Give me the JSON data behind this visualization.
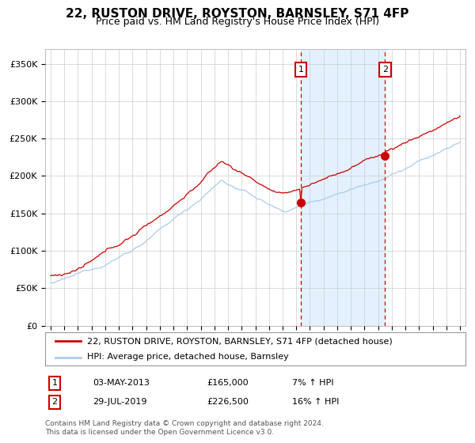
{
  "title": "22, RUSTON DRIVE, ROYSTON, BARNSLEY, S71 4FP",
  "subtitle": "Price paid vs. HM Land Registry's House Price Index (HPI)",
  "ylim": [
    0,
    370000
  ],
  "yticks": [
    0,
    50000,
    100000,
    150000,
    200000,
    250000,
    300000,
    350000
  ],
  "ytick_labels": [
    "£0",
    "£50K",
    "£100K",
    "£150K",
    "£200K",
    "£250K",
    "£300K",
    "£350K"
  ],
  "hpi_color": "#aaccee",
  "price_color": "#cc0000",
  "vline_color": "#dd0000",
  "shade_color": "#ddeeff",
  "dot_color": "#cc0000",
  "grid_color": "#cccccc",
  "legend_label_price": "22, RUSTON DRIVE, ROYSTON, BARNSLEY, S71 4FP (detached house)",
  "legend_label_hpi": "HPI: Average price, detached house, Barnsley",
  "transaction1_date": "03-MAY-2013",
  "transaction1_price": 165000,
  "transaction1_pct": "7%",
  "transaction2_date": "29-JUL-2019",
  "transaction2_price": 226500,
  "transaction2_pct": "16%",
  "footnote1": "Contains HM Land Registry data © Crown copyright and database right 2024.",
  "footnote2": "This data is licensed under the Open Government Licence v3.0."
}
